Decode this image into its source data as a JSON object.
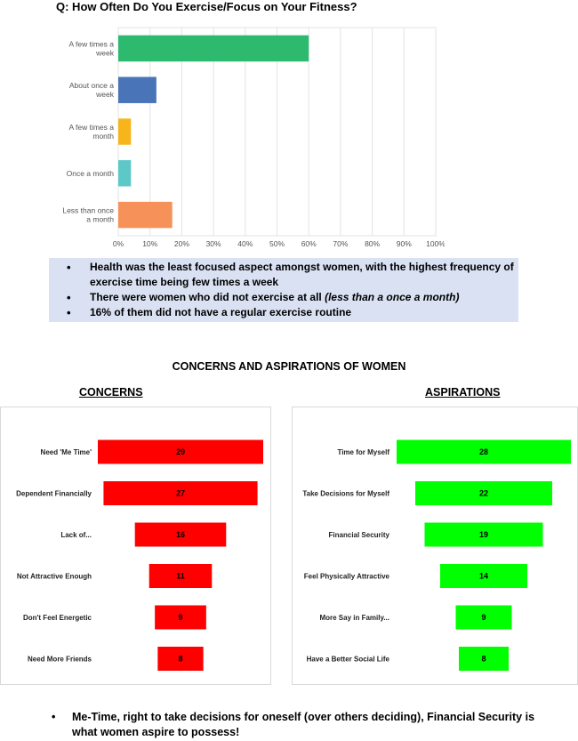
{
  "question": "Q: How Often Do You Exercise/Focus on Your Fitness?",
  "chart_data": [
    {
      "type": "bar",
      "orientation": "horizontal",
      "categories": [
        [
          "A few times a",
          "week"
        ],
        [
          "About once a",
          "week"
        ],
        [
          "A few times a",
          "month"
        ],
        [
          "Once a month"
        ],
        [
          "Less than once",
          "a month"
        ]
      ],
      "values": [
        60,
        12,
        4,
        4,
        17
      ],
      "colors": [
        "#2dba6e",
        "#4a74b8",
        "#f7b51c",
        "#5ec8c8",
        "#f7915a"
      ],
      "xlim": [
        0,
        100
      ],
      "ticks": [
        "0%",
        "10%",
        "20%",
        "30%",
        "40%",
        "50%",
        "60%",
        "70%",
        "80%",
        "90%",
        "100%"
      ],
      "grid": true
    },
    {
      "type": "bar",
      "orientation": "horizontal-centered",
      "categories": [
        "Need 'Me Time'",
        "Dependent Financially",
        "Lack of...",
        "Not Attractive Enough",
        "Don't Feel Energetic",
        "Need More Friends"
      ],
      "values": [
        29,
        27,
        16,
        11,
        9,
        8
      ],
      "color": "#ff0000"
    },
    {
      "type": "bar",
      "orientation": "horizontal-centered",
      "categories": [
        "Time for Myself",
        "Take Decisions for Myself",
        "Financial Security",
        "Feel Physically Attractive",
        "More Say in Family...",
        "Have a Better Social Life"
      ],
      "values": [
        28,
        22,
        19,
        14,
        9,
        8
      ],
      "color": "#00ff00"
    }
  ],
  "findings": [
    {
      "text": "Health was the least focused aspect amongst women, with the highest frequency of exercise time being few times a week",
      "italic": ""
    },
    {
      "text": "There were women who did not exercise at all ",
      "italic": "(less than a once a month)"
    },
    {
      "text": "16% of them did not have a regular exercise routine",
      "italic": ""
    }
  ],
  "section_title": "CONCERNS AND ASPIRATIONS OF WOMEN",
  "concerns_heading": "CONCERNS",
  "aspirations_heading": "ASPIRATIONS",
  "bottom_note": "Me-Time, right to take decisions for oneself (over others deciding), Financial Security is what women aspire to possess!"
}
